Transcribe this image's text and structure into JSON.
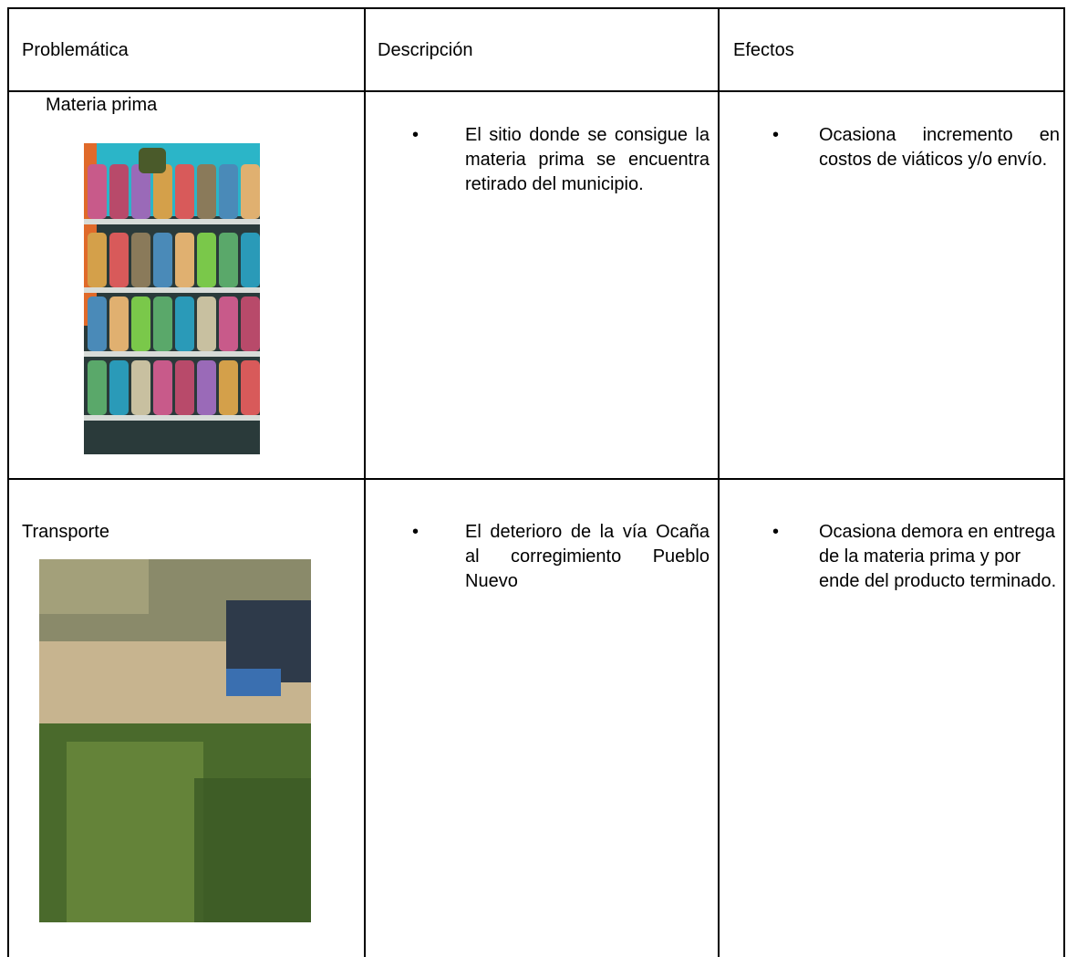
{
  "table": {
    "header": [
      "Problemática",
      "Descripción",
      "Efectos"
    ],
    "rows": [
      {
        "problem": "Materia prima",
        "description": "El sitio donde se consigue la materia prima se encuentra retirado del municipio.",
        "effect": "Ocasiona incremento en costos de viáticos y/o envío."
      },
      {
        "problem": "Transporte",
        "description": "El deterioro de la vía Ocaña al corregimiento Pueblo Nuevo",
        "effect": "Ocasiona demora en entrega de la materia prima y por ende del producto terminado."
      }
    ]
  }
}
